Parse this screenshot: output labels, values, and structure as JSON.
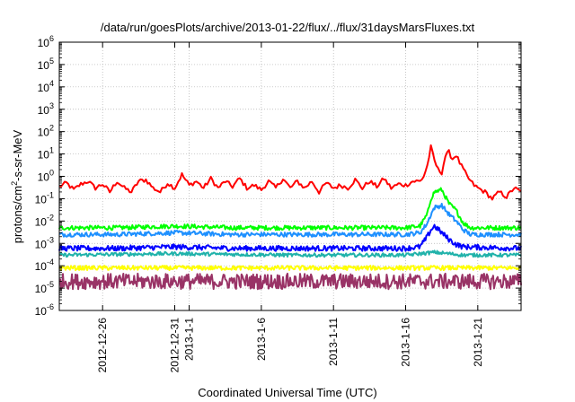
{
  "chart_data": {
    "type": "line",
    "title": "/data/run/goesPlots/archive/2013-01-22/flux/../flux/31daysMarsFluxes.txt",
    "xlabel": "Coordinated Universal Time (UTC)",
    "ylabel_parts": [
      "protons/cm",
      "2",
      "-s-sr-MeV"
    ],
    "y_scale": "log",
    "ylim": [
      1e-06,
      1000000.0
    ],
    "y_ticks": [
      {
        "base": "10",
        "exp": "-6"
      },
      {
        "base": "10",
        "exp": "-5"
      },
      {
        "base": "10",
        "exp": "-4"
      },
      {
        "base": "10",
        "exp": "-3"
      },
      {
        "base": "10",
        "exp": "-2"
      },
      {
        "base": "10",
        "exp": "-1"
      },
      {
        "base": "10",
        "exp": "0"
      },
      {
        "base": "10",
        "exp": "1"
      },
      {
        "base": "10",
        "exp": "2"
      },
      {
        "base": "10",
        "exp": "3"
      },
      {
        "base": "10",
        "exp": "4"
      },
      {
        "base": "10",
        "exp": "5"
      },
      {
        "base": "10",
        "exp": "6"
      }
    ],
    "xlim": [
      "2012-12-23T00:00",
      "2013-01-24T00:00"
    ],
    "x_ticks": [
      {
        "date": "2012-12-26T00:00",
        "label": "2012-12-26"
      },
      {
        "date": "2012-12-31T00:00",
        "label": "2012-12-31"
      },
      {
        "date": "2013-01-01T00:00",
        "label": "2013-1-1"
      },
      {
        "date": "2013-01-06T00:00",
        "label": "2013-1-6"
      },
      {
        "date": "2013-01-11T00:00",
        "label": "2013-1-11"
      },
      {
        "date": "2013-01-16T00:00",
        "label": "2013-1-16"
      },
      {
        "date": "2013-01-21T00:00",
        "label": "2013-1-21"
      }
    ],
    "grid": true,
    "series": [
      {
        "color": "#ff0000",
        "points": [
          [
            "2012-12-23T00:00",
            0.35
          ],
          [
            "2012-12-23T12:00",
            0.5
          ],
          [
            "2012-12-24T00:00",
            0.25
          ],
          [
            "2012-12-24T12:00",
            0.45
          ],
          [
            "2012-12-25T00:00",
            0.6
          ],
          [
            "2012-12-25T12:00",
            0.3
          ],
          [
            "2012-12-26T00:00",
            0.45
          ],
          [
            "2012-12-26T12:00",
            0.2
          ],
          [
            "2012-12-27T00:00",
            0.6
          ],
          [
            "2012-12-27T12:00",
            0.3
          ],
          [
            "2012-12-28T00:00",
            0.2
          ],
          [
            "2012-12-28T12:00",
            0.6
          ],
          [
            "2012-12-29T00:00",
            0.7
          ],
          [
            "2012-12-29T12:00",
            0.3
          ],
          [
            "2012-12-30T00:00",
            0.2
          ],
          [
            "2012-12-30T12:00",
            0.5
          ],
          [
            "2012-12-31T00:00",
            0.3
          ],
          [
            "2012-12-31T12:00",
            1.2
          ],
          [
            "2013-01-01T00:00",
            0.4
          ],
          [
            "2013-01-01T12:00",
            0.6
          ],
          [
            "2013-01-02T00:00",
            0.3
          ],
          [
            "2013-01-02T12:00",
            0.8
          ],
          [
            "2013-01-03T00:00",
            0.3
          ],
          [
            "2013-01-03T12:00",
            0.6
          ],
          [
            "2013-01-04T00:00",
            0.35
          ],
          [
            "2013-01-04T12:00",
            0.8
          ],
          [
            "2013-01-05T00:00",
            0.3
          ],
          [
            "2013-01-05T12:00",
            0.4
          ],
          [
            "2013-01-06T00:00",
            0.25
          ],
          [
            "2013-01-06T12:00",
            0.6
          ],
          [
            "2013-01-07T00:00",
            0.3
          ],
          [
            "2013-01-07T12:00",
            0.8
          ],
          [
            "2013-01-08T00:00",
            0.3
          ],
          [
            "2013-01-08T12:00",
            0.6
          ],
          [
            "2013-01-09T00:00",
            0.3
          ],
          [
            "2013-01-09T12:00",
            0.6
          ],
          [
            "2013-01-10T00:00",
            0.2
          ],
          [
            "2013-01-10T12:00",
            0.5
          ],
          [
            "2013-01-11T00:00",
            0.3
          ],
          [
            "2013-01-11T12:00",
            0.4
          ],
          [
            "2013-01-12T00:00",
            0.3
          ],
          [
            "2013-01-12T12:00",
            0.7
          ],
          [
            "2013-01-13T00:00",
            0.3
          ],
          [
            "2013-01-13T12:00",
            0.6
          ],
          [
            "2013-01-14T00:00",
            0.35
          ],
          [
            "2013-01-14T12:00",
            0.8
          ],
          [
            "2013-01-15T00:00",
            0.3
          ],
          [
            "2013-01-15T12:00",
            0.45
          ],
          [
            "2013-01-16T00:00",
            0.4
          ],
          [
            "2013-01-16T12:00",
            0.6
          ],
          [
            "2013-01-17T00:00",
            0.6
          ],
          [
            "2013-01-17T06:00",
            1.0
          ],
          [
            "2013-01-17T12:00",
            3
          ],
          [
            "2013-01-17T18:00",
            20
          ],
          [
            "2013-01-18T00:00",
            5
          ],
          [
            "2013-01-18T06:00",
            2
          ],
          [
            "2013-01-18T12:00",
            1.5
          ],
          [
            "2013-01-18T18:00",
            8
          ],
          [
            "2013-01-19T00:00",
            12
          ],
          [
            "2013-01-19T06:00",
            6
          ],
          [
            "2013-01-19T12:00",
            9
          ],
          [
            "2013-01-19T18:00",
            4
          ],
          [
            "2013-01-20T00:00",
            2
          ],
          [
            "2013-01-20T06:00",
            1
          ],
          [
            "2013-01-20T12:00",
            0.6
          ],
          [
            "2013-01-20T18:00",
            0.4
          ],
          [
            "2013-01-21T00:00",
            0.3
          ],
          [
            "2013-01-21T12:00",
            0.2
          ],
          [
            "2013-01-22T00:00",
            0.1
          ],
          [
            "2013-01-22T12:00",
            0.2
          ],
          [
            "2013-01-23T00:00",
            0.12
          ],
          [
            "2013-01-23T12:00",
            0.3
          ],
          [
            "2013-01-24T00:00",
            0.2
          ]
        ]
      },
      {
        "color": "#00ff00",
        "points": [
          [
            "2012-12-23T00:00",
            0.005
          ],
          [
            "2012-12-27T00:00",
            0.005
          ],
          [
            "2012-12-31T00:00",
            0.006
          ],
          [
            "2013-01-04T00:00",
            0.005
          ],
          [
            "2013-01-08T00:00",
            0.005
          ],
          [
            "2013-01-12T00:00",
            0.005
          ],
          [
            "2013-01-16T00:00",
            0.005
          ],
          [
            "2013-01-17T00:00",
            0.006
          ],
          [
            "2013-01-17T12:00",
            0.02
          ],
          [
            "2013-01-17T18:00",
            0.1
          ],
          [
            "2013-01-18T00:00",
            0.2
          ],
          [
            "2013-01-18T12:00",
            0.25
          ],
          [
            "2013-01-19T00:00",
            0.06
          ],
          [
            "2013-01-19T12:00",
            0.03
          ],
          [
            "2013-01-20T00:00",
            0.008
          ],
          [
            "2013-01-20T12:00",
            0.005
          ],
          [
            "2013-01-24T00:00",
            0.005
          ]
        ]
      },
      {
        "color": "#1e90ff",
        "points": [
          [
            "2012-12-23T00:00",
            0.0025
          ],
          [
            "2012-12-27T00:00",
            0.0025
          ],
          [
            "2012-12-31T00:00",
            0.003
          ],
          [
            "2013-01-04T00:00",
            0.0025
          ],
          [
            "2013-01-08T00:00",
            0.0025
          ],
          [
            "2013-01-12T00:00",
            0.0025
          ],
          [
            "2013-01-16T00:00",
            0.0025
          ],
          [
            "2013-01-17T00:00",
            0.003
          ],
          [
            "2013-01-17T12:00",
            0.008
          ],
          [
            "2013-01-17T18:00",
            0.02
          ],
          [
            "2013-01-18T00:00",
            0.04
          ],
          [
            "2013-01-18T12:00",
            0.05
          ],
          [
            "2013-01-19T00:00",
            0.02
          ],
          [
            "2013-01-19T12:00",
            0.01
          ],
          [
            "2013-01-20T00:00",
            0.004
          ],
          [
            "2013-01-20T12:00",
            0.0025
          ],
          [
            "2013-01-24T00:00",
            0.0025
          ]
        ]
      },
      {
        "color": "#0000ff",
        "points": [
          [
            "2012-12-23T00:00",
            0.0006
          ],
          [
            "2012-12-27T00:00",
            0.0006
          ],
          [
            "2012-12-31T00:00",
            0.0007
          ],
          [
            "2013-01-04T00:00",
            0.0006
          ],
          [
            "2013-01-08T00:00",
            0.0006
          ],
          [
            "2013-01-12T00:00",
            0.0006
          ],
          [
            "2013-01-16T00:00",
            0.0006
          ],
          [
            "2013-01-17T00:00",
            0.0007
          ],
          [
            "2013-01-17T12:00",
            0.002
          ],
          [
            "2013-01-17T18:00",
            0.004
          ],
          [
            "2013-01-18T00:00",
            0.006
          ],
          [
            "2013-01-18T12:00",
            0.003
          ],
          [
            "2013-01-19T00:00",
            0.0015
          ],
          [
            "2013-01-19T12:00",
            0.0009
          ],
          [
            "2013-01-20T00:00",
            0.0007
          ],
          [
            "2013-01-24T00:00",
            0.0006
          ]
        ]
      },
      {
        "color": "#20b2aa",
        "points": [
          [
            "2012-12-23T00:00",
            0.0003
          ],
          [
            "2012-12-31T00:00",
            0.00035
          ],
          [
            "2013-01-08T00:00",
            0.0003
          ],
          [
            "2013-01-16T00:00",
            0.0003
          ],
          [
            "2013-01-18T00:00",
            0.0004
          ],
          [
            "2013-01-20T00:00",
            0.0003
          ],
          [
            "2013-01-24T00:00",
            0.0003
          ]
        ]
      },
      {
        "color": "#ffff00",
        "points": [
          [
            "2012-12-23T00:00",
            8e-05
          ],
          [
            "2012-12-31T00:00",
            8e-05
          ],
          [
            "2013-01-08T00:00",
            8e-05
          ],
          [
            "2013-01-16T00:00",
            8e-05
          ],
          [
            "2013-01-24T00:00",
            8e-05
          ]
        ]
      },
      {
        "color": "#993366",
        "points": [
          [
            "2012-12-23T00:00",
            2e-05
          ],
          [
            "2012-12-31T00:00",
            2e-05
          ],
          [
            "2013-01-08T00:00",
            2e-05
          ],
          [
            "2013-01-16T00:00",
            2e-05
          ],
          [
            "2013-01-24T00:00",
            2e-05
          ]
        ]
      }
    ]
  }
}
